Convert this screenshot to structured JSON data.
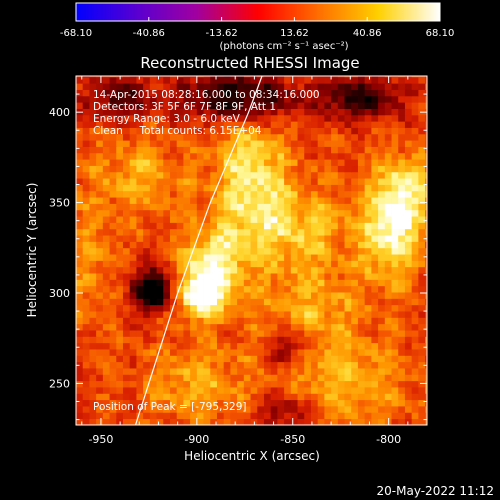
{
  "chart_data": {
    "type": "heatmap",
    "title": "Reconstructed RHESSI Image",
    "xlabel": "Heliocentric X (arcsec)",
    "ylabel": "Heliocentric Y (arcsec)",
    "xlim": [
      -963,
      -780
    ],
    "ylim": [
      227,
      420
    ],
    "x_ticks": [
      -950,
      -900,
      -850,
      -800
    ],
    "y_ticks": [
      250,
      300,
      350,
      400
    ],
    "colorbar": {
      "min": -68.1,
      "max": 68.1,
      "tick_values": [
        -68.1,
        -40.86,
        -13.62,
        13.62,
        40.86,
        68.1
      ],
      "tick_labels": [
        "-68.10",
        "-40.86",
        "-13.62",
        "13.62",
        "40.86",
        "68.10"
      ],
      "unit_label": "(photons cm⁻² s⁻¹ asec⁻²)"
    },
    "info_lines": [
      "14-Apr-2015 08:28:16.000 to 08:34:16.000",
      "Detectors: 3F 5F 6F 7F 8F 9F, Att 1",
      "Energy Range: 3.0 - 6.0 keV",
      "Clean     Total counts: 6.15E+04"
    ],
    "peak_label": "Position of Peak = [-795,329]",
    "peak_position": [
      -795,
      329
    ],
    "limb_curve": [
      [
        -932,
        227
      ],
      [
        -922,
        260
      ],
      [
        -910,
        300
      ],
      [
        -893,
        350
      ],
      [
        -873,
        400
      ],
      [
        -866,
        420
      ]
    ],
    "blobs": [
      {
        "x": -898,
        "y": 300,
        "sx": 10,
        "sy": 10,
        "amp": 1.15
      },
      {
        "x": -892,
        "y": 318,
        "sx": 12,
        "sy": 14,
        "amp": 0.7
      },
      {
        "x": -798,
        "y": 337,
        "sx": 11,
        "sy": 20,
        "amp": 1.05
      },
      {
        "x": -790,
        "y": 360,
        "sx": 9,
        "sy": 12,
        "amp": 0.55
      },
      {
        "x": -872,
        "y": 362,
        "sx": 14,
        "sy": 28,
        "amp": 0.85
      },
      {
        "x": -845,
        "y": 338,
        "sx": 18,
        "sy": 14,
        "amp": 0.55
      },
      {
        "x": -840,
        "y": 290,
        "sx": 20,
        "sy": 22,
        "amp": 0.5
      },
      {
        "x": -930,
        "y": 365,
        "sx": 16,
        "sy": 14,
        "amp": 0.5
      },
      {
        "x": -900,
        "y": 250,
        "sx": 18,
        "sy": 14,
        "amp": 0.5
      },
      {
        "x": -820,
        "y": 250,
        "sx": 25,
        "sy": 16,
        "amp": 0.45
      },
      {
        "x": -955,
        "y": 320,
        "sx": 10,
        "sy": 25,
        "amp": 0.35
      }
    ],
    "dips": [
      {
        "x": -922,
        "y": 302,
        "sx": 8,
        "sy": 8,
        "amp": 1.1
      },
      {
        "x": -878,
        "y": 408,
        "sx": 20,
        "sy": 10,
        "amp": 0.9
      },
      {
        "x": -815,
        "y": 408,
        "sx": 16,
        "sy": 8,
        "amp": 0.7
      },
      {
        "x": -940,
        "y": 408,
        "sx": 12,
        "sy": 8,
        "amp": 0.6
      },
      {
        "x": -852,
        "y": 270,
        "sx": 8,
        "sy": 8,
        "amp": 0.6
      },
      {
        "x": -855,
        "y": 235,
        "sx": 10,
        "sy": 8,
        "amp": 0.45
      }
    ]
  },
  "footer": {
    "timestamp": "20-May-2022 11:12"
  },
  "colors": {
    "background": "#000000",
    "foreground": "#ffffff",
    "colormap": [
      "#0000ff",
      "#5a00d0",
      "#a000a0",
      "#ff0000",
      "#ff7000",
      "#ffd000",
      "#ffffff"
    ]
  }
}
